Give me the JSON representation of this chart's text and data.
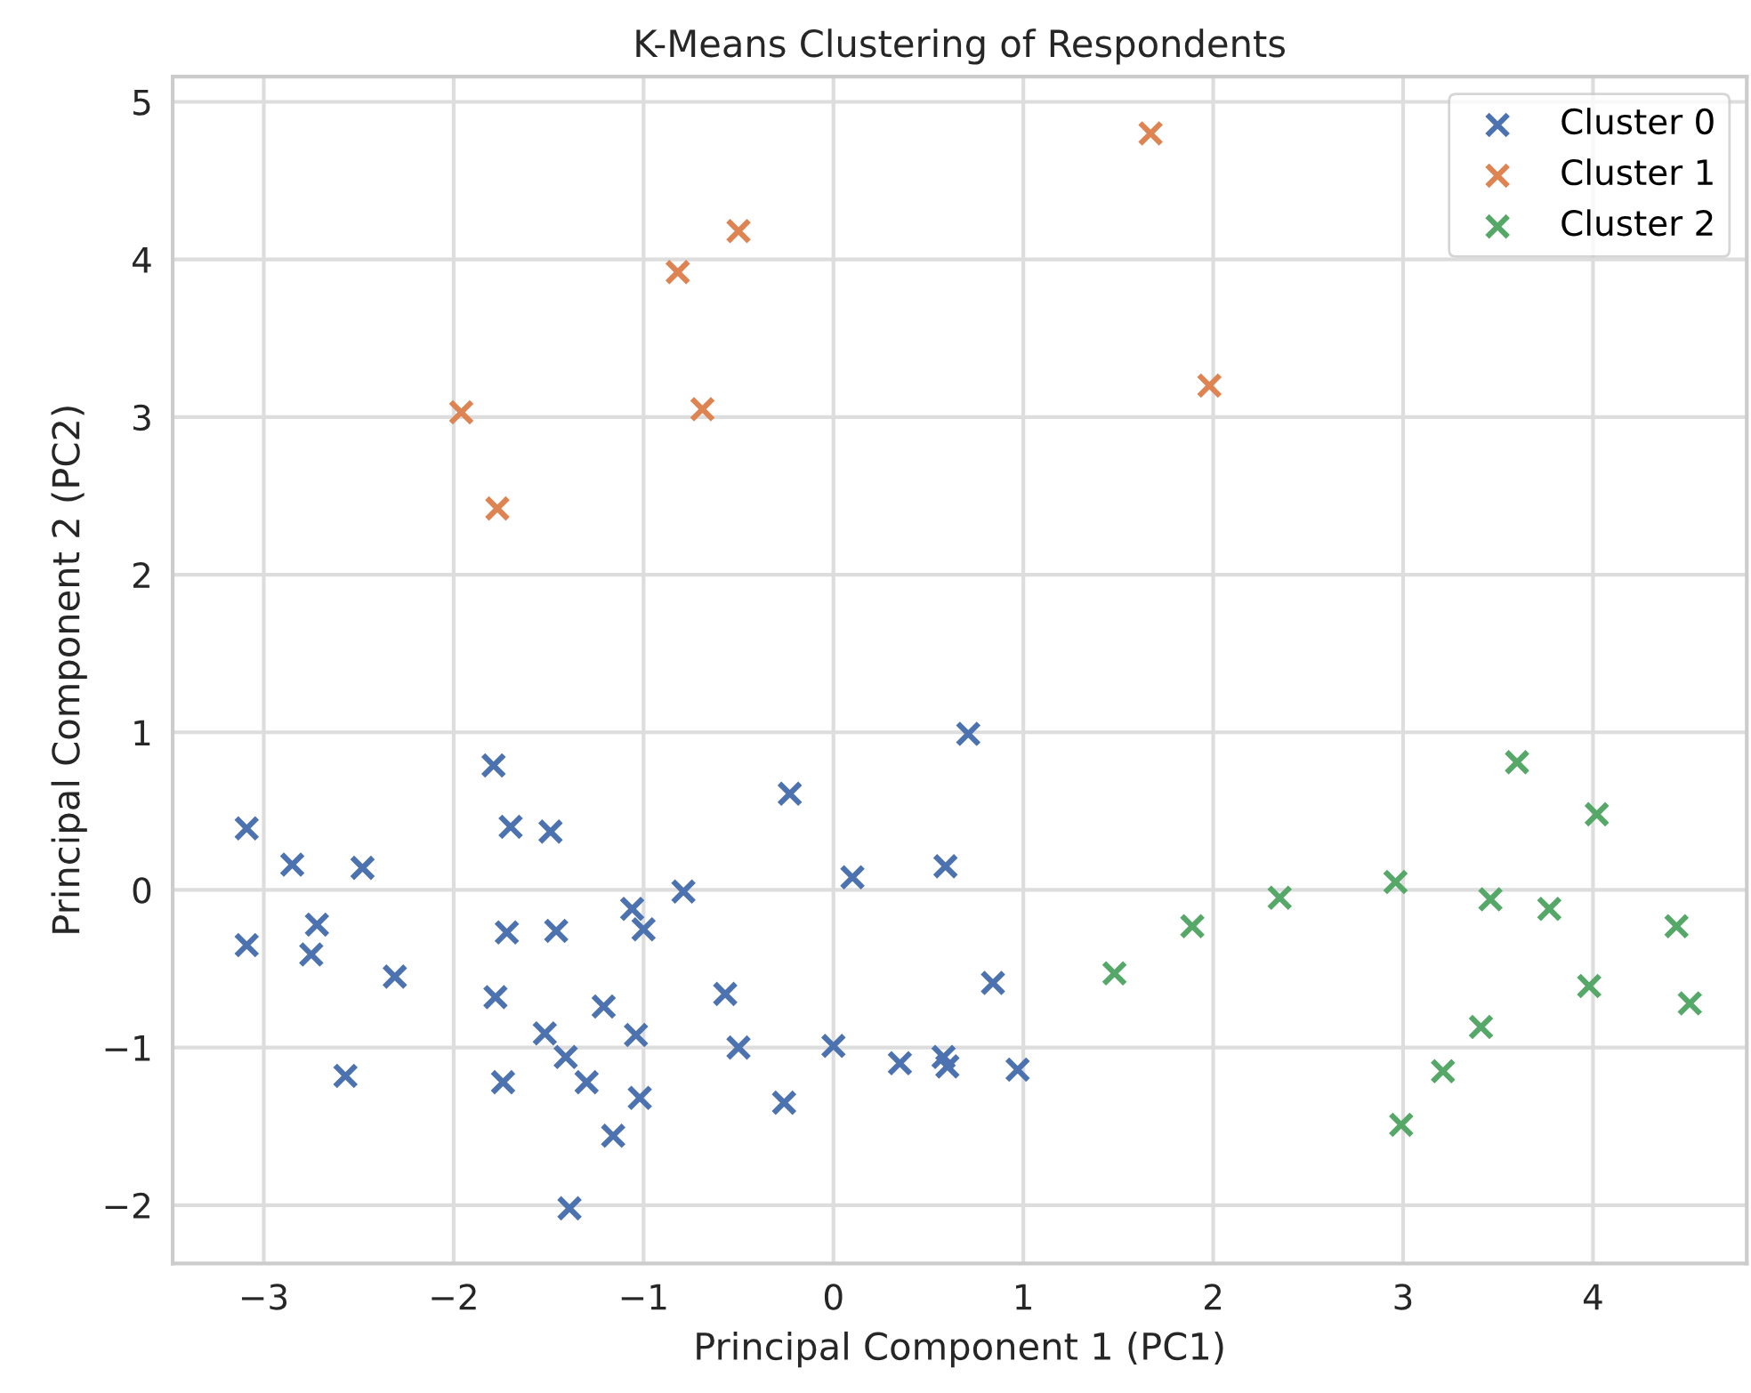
{
  "chart_data": {
    "type": "scatter",
    "title": "K-Means Clustering of Respondents",
    "xlabel": "Principal Component 1 (PC1)",
    "ylabel": "Principal Component 2 (PC2)",
    "xlim": [
      -3.48,
      4.81
    ],
    "ylim": [
      -2.37,
      5.16
    ],
    "xticks": [
      -3,
      -2,
      -1,
      0,
      1,
      2,
      3,
      4
    ],
    "yticks": [
      -2,
      -1,
      0,
      1,
      2,
      3,
      4,
      5
    ],
    "grid": true,
    "legend": "top right",
    "marker": "cross",
    "series": [
      {
        "name": "Cluster 0",
        "color": "#4c72b0",
        "x": [
          -3.09,
          -3.09,
          -2.85,
          -2.72,
          -2.75,
          -2.48,
          -2.31,
          -2.57,
          -1.79,
          -1.7,
          -1.49,
          -1.72,
          -1.46,
          -1.78,
          -1.74,
          -1.52,
          -1.41,
          -1.3,
          -1.39,
          -1.16,
          -1.21,
          -1.04,
          -1.02,
          -1.06,
          -1.0,
          -0.79,
          -0.57,
          -0.5,
          0.71,
          -0.23,
          0.1,
          0.59,
          0.0,
          -0.26,
          0.35,
          0.58,
          0.6,
          0.84,
          0.97
        ],
        "values": [
          0.39,
          -0.35,
          0.16,
          -0.22,
          -0.41,
          0.14,
          -0.55,
          -1.18,
          0.79,
          0.4,
          0.37,
          -0.27,
          -0.26,
          -0.68,
          -1.22,
          -0.91,
          -1.06,
          -1.22,
          -2.02,
          -1.56,
          -0.74,
          -0.92,
          -1.32,
          -0.12,
          -0.25,
          -0.01,
          -0.66,
          -1.0,
          0.99,
          0.61,
          0.08,
          0.15,
          -0.99,
          -1.35,
          -1.1,
          -1.06,
          -1.12,
          -0.59,
          -1.14
        ]
      },
      {
        "name": "Cluster 1",
        "color": "#dd8452",
        "x": [
          1.67,
          -0.5,
          -0.82,
          -1.96,
          -0.69,
          1.98,
          -1.77
        ],
        "values": [
          4.8,
          4.18,
          3.92,
          3.03,
          3.05,
          3.2,
          2.42
        ]
      },
      {
        "name": "Cluster 2",
        "color": "#55a868",
        "x": [
          1.48,
          1.89,
          2.35,
          2.96,
          3.6,
          4.02,
          3.46,
          3.77,
          4.44,
          3.98,
          4.51,
          3.41,
          3.21,
          2.99
        ],
        "values": [
          -0.53,
          -0.23,
          -0.05,
          0.05,
          0.81,
          0.48,
          -0.06,
          -0.12,
          -0.23,
          -0.61,
          -0.72,
          -0.87,
          -1.15,
          -1.49
        ]
      }
    ]
  }
}
